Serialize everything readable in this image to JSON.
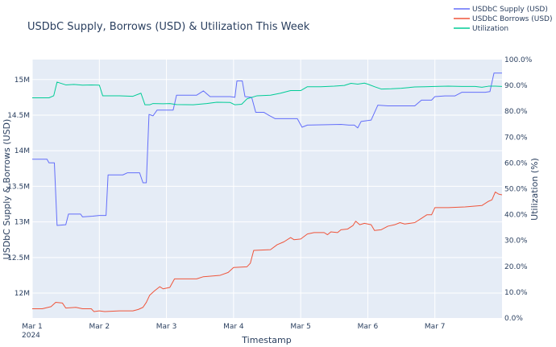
{
  "chart_data": {
    "type": "line",
    "title": "USDbC Supply, Borrows (USD) & Utilization This Week",
    "xlabel": "Timestamp",
    "ylabel": "USDbC Supply & Borrows (USD)",
    "y2label": "Utilization (%)",
    "x_ticks": [
      {
        "day": 0,
        "label": "Mar 1",
        "sub": "2024"
      },
      {
        "day": 1,
        "label": "Mar 2",
        "sub": ""
      },
      {
        "day": 2,
        "label": "Mar 3",
        "sub": ""
      },
      {
        "day": 3,
        "label": "Mar 4",
        "sub": ""
      },
      {
        "day": 4,
        "label": "Mar 5",
        "sub": ""
      },
      {
        "day": 5,
        "label": "Mar 6",
        "sub": ""
      },
      {
        "day": 6,
        "label": "Mar 7",
        "sub": ""
      }
    ],
    "xlim": [
      0,
      7
    ],
    "ylim": [
      11650000,
      15280000
    ],
    "y_ticks": [
      {
        "value": 12000000,
        "label": "12M"
      },
      {
        "value": 12500000,
        "label": "12.5M"
      },
      {
        "value": 13000000,
        "label": "13M"
      },
      {
        "value": 13500000,
        "label": "13.5M"
      },
      {
        "value": 14000000,
        "label": "14M"
      },
      {
        "value": 14500000,
        "label": "14.5M"
      },
      {
        "value": 15000000,
        "label": "15M"
      }
    ],
    "y2lim": [
      0,
      100
    ],
    "y2_ticks": [
      {
        "value": 0,
        "label": "0.0%"
      },
      {
        "value": 10,
        "label": "10.0%"
      },
      {
        "value": 20,
        "label": "20.0%"
      },
      {
        "value": 30,
        "label": "30.0%"
      },
      {
        "value": 40,
        "label": "40.0%"
      },
      {
        "value": 50,
        "label": "50.0%"
      },
      {
        "value": 60,
        "label": "60.0%"
      },
      {
        "value": 70,
        "label": "70.0%"
      },
      {
        "value": 80,
        "label": "80.0%"
      },
      {
        "value": 90,
        "label": "90.0%"
      },
      {
        "value": 100,
        "label": "100.0%"
      }
    ],
    "legend_position": "top-right",
    "series": [
      {
        "name": "USDbC Supply (USD)",
        "color": "#636efa",
        "axis": "left",
        "points": [
          [
            0,
            13880000
          ],
          [
            0.22,
            13880000
          ],
          [
            0.25,
            13830000
          ],
          [
            0.33,
            13830000
          ],
          [
            0.37,
            12950000
          ],
          [
            0.5,
            12960000
          ],
          [
            0.54,
            13110000
          ],
          [
            0.72,
            13110000
          ],
          [
            0.75,
            13070000
          ],
          [
            0.9,
            13080000
          ],
          [
            1.0,
            13090000
          ],
          [
            1.1,
            13090000
          ],
          [
            1.13,
            13660000
          ],
          [
            1.35,
            13660000
          ],
          [
            1.42,
            13690000
          ],
          [
            1.6,
            13690000
          ],
          [
            1.65,
            13550000
          ],
          [
            1.7,
            13550000
          ],
          [
            1.74,
            14510000
          ],
          [
            1.8,
            14490000
          ],
          [
            1.86,
            14570000
          ],
          [
            2.1,
            14570000
          ],
          [
            2.15,
            14780000
          ],
          [
            2.45,
            14780000
          ],
          [
            2.55,
            14840000
          ],
          [
            2.65,
            14760000
          ],
          [
            2.95,
            14760000
          ],
          [
            3.02,
            14750000
          ],
          [
            3.05,
            14980000
          ],
          [
            3.13,
            14980000
          ],
          [
            3.17,
            14760000
          ],
          [
            3.27,
            14750000
          ],
          [
            3.33,
            14540000
          ],
          [
            3.45,
            14540000
          ],
          [
            3.52,
            14500000
          ],
          [
            3.62,
            14450000
          ],
          [
            3.95,
            14450000
          ],
          [
            4.02,
            14330000
          ],
          [
            4.1,
            14360000
          ],
          [
            4.6,
            14370000
          ],
          [
            4.72,
            14360000
          ],
          [
            4.8,
            14360000
          ],
          [
            4.85,
            14320000
          ],
          [
            4.9,
            14410000
          ],
          [
            5.05,
            14430000
          ],
          [
            5.15,
            14640000
          ],
          [
            5.3,
            14630000
          ],
          [
            5.7,
            14630000
          ],
          [
            5.8,
            14710000
          ],
          [
            5.95,
            14710000
          ],
          [
            6.0,
            14760000
          ],
          [
            6.15,
            14770000
          ],
          [
            6.3,
            14770000
          ],
          [
            6.4,
            14820000
          ],
          [
            6.75,
            14820000
          ],
          [
            6.82,
            14830000
          ],
          [
            6.88,
            15090000
          ],
          [
            6.94,
            15090000
          ],
          [
            7.0,
            15090000
          ]
        ]
      },
      {
        "name": "USDbC Borrows (USD)",
        "color": "#ef553b",
        "axis": "left",
        "points": [
          [
            0,
            11780000
          ],
          [
            0.15,
            11780000
          ],
          [
            0.28,
            11810000
          ],
          [
            0.35,
            11870000
          ],
          [
            0.45,
            11860000
          ],
          [
            0.5,
            11790000
          ],
          [
            0.65,
            11800000
          ],
          [
            0.75,
            11780000
          ],
          [
            0.88,
            11780000
          ],
          [
            0.92,
            11740000
          ],
          [
            1.0,
            11750000
          ],
          [
            1.08,
            11740000
          ],
          [
            1.3,
            11750000
          ],
          [
            1.5,
            11750000
          ],
          [
            1.58,
            11770000
          ],
          [
            1.65,
            11800000
          ],
          [
            1.7,
            11870000
          ],
          [
            1.75,
            11970000
          ],
          [
            1.82,
            12030000
          ],
          [
            1.9,
            12090000
          ],
          [
            1.95,
            12060000
          ],
          [
            2.05,
            12080000
          ],
          [
            2.12,
            12200000
          ],
          [
            2.45,
            12200000
          ],
          [
            2.55,
            12230000
          ],
          [
            2.8,
            12250000
          ],
          [
            2.92,
            12290000
          ],
          [
            3.0,
            12360000
          ],
          [
            3.2,
            12370000
          ],
          [
            3.25,
            12420000
          ],
          [
            3.3,
            12600000
          ],
          [
            3.55,
            12610000
          ],
          [
            3.65,
            12680000
          ],
          [
            3.75,
            12720000
          ],
          [
            3.85,
            12780000
          ],
          [
            3.9,
            12750000
          ],
          [
            4.0,
            12760000
          ],
          [
            4.1,
            12830000
          ],
          [
            4.2,
            12850000
          ],
          [
            4.35,
            12850000
          ],
          [
            4.4,
            12820000
          ],
          [
            4.45,
            12860000
          ],
          [
            4.55,
            12850000
          ],
          [
            4.6,
            12890000
          ],
          [
            4.7,
            12900000
          ],
          [
            4.78,
            12950000
          ],
          [
            4.82,
            13010000
          ],
          [
            4.88,
            12960000
          ],
          [
            4.95,
            12980000
          ],
          [
            5.05,
            12960000
          ],
          [
            5.1,
            12880000
          ],
          [
            5.2,
            12890000
          ],
          [
            5.3,
            12940000
          ],
          [
            5.4,
            12960000
          ],
          [
            5.48,
            12990000
          ],
          [
            5.55,
            12970000
          ],
          [
            5.7,
            12990000
          ],
          [
            5.8,
            13050000
          ],
          [
            5.88,
            13100000
          ],
          [
            5.95,
            13100000
          ],
          [
            6.0,
            13200000
          ],
          [
            6.2,
            13200000
          ],
          [
            6.45,
            13210000
          ],
          [
            6.7,
            13230000
          ],
          [
            6.8,
            13290000
          ],
          [
            6.85,
            13310000
          ],
          [
            6.9,
            13420000
          ],
          [
            6.95,
            13390000
          ],
          [
            7.0,
            13380000
          ]
        ]
      },
      {
        "name": "Utilization",
        "color": "#00cc96",
        "axis": "right",
        "points": [
          [
            0,
            85.2
          ],
          [
            0.25,
            85.2
          ],
          [
            0.32,
            86.0
          ],
          [
            0.37,
            91.3
          ],
          [
            0.5,
            90.2
          ],
          [
            0.62,
            90.4
          ],
          [
            0.75,
            90.1
          ],
          [
            0.88,
            90.2
          ],
          [
            1.0,
            90.1
          ],
          [
            1.05,
            86.0
          ],
          [
            1.3,
            86.0
          ],
          [
            1.5,
            85.8
          ],
          [
            1.62,
            87.0
          ],
          [
            1.68,
            82.5
          ],
          [
            1.75,
            82.5
          ],
          [
            1.8,
            83.0
          ],
          [
            1.95,
            82.9
          ],
          [
            2.05,
            83.0
          ],
          [
            2.15,
            82.6
          ],
          [
            2.4,
            82.5
          ],
          [
            2.6,
            83.0
          ],
          [
            2.75,
            83.5
          ],
          [
            2.95,
            83.4
          ],
          [
            3.02,
            82.5
          ],
          [
            3.12,
            82.7
          ],
          [
            3.2,
            84.8
          ],
          [
            3.35,
            86.0
          ],
          [
            3.55,
            86.2
          ],
          [
            3.7,
            87.0
          ],
          [
            3.85,
            88.0
          ],
          [
            4.0,
            88.0
          ],
          [
            4.1,
            89.5
          ],
          [
            4.3,
            89.5
          ],
          [
            4.5,
            89.7
          ],
          [
            4.65,
            90.0
          ],
          [
            4.75,
            90.8
          ],
          [
            4.85,
            90.5
          ],
          [
            4.95,
            90.9
          ],
          [
            5.0,
            90.5
          ],
          [
            5.1,
            89.5
          ],
          [
            5.2,
            88.6
          ],
          [
            5.35,
            88.7
          ],
          [
            5.5,
            88.9
          ],
          [
            5.7,
            89.4
          ],
          [
            5.85,
            89.5
          ],
          [
            6.0,
            89.6
          ],
          [
            6.2,
            89.7
          ],
          [
            6.4,
            89.6
          ],
          [
            6.6,
            89.6
          ],
          [
            6.7,
            89.3
          ],
          [
            6.8,
            89.7
          ],
          [
            6.9,
            89.7
          ],
          [
            7.0,
            89.6
          ]
        ]
      }
    ]
  }
}
